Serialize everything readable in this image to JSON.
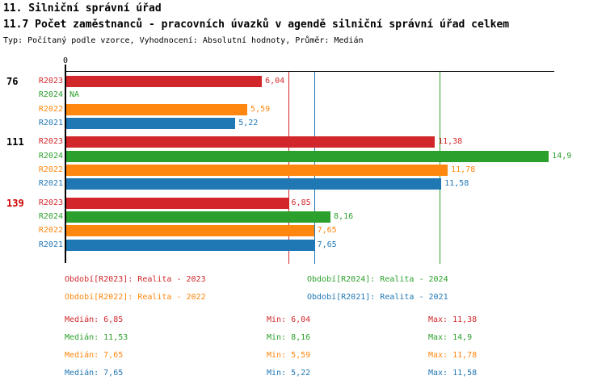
{
  "header": {
    "title": "11. Silniční správní úřad",
    "subtitle": "11.7 Počet zaměstnanců - pracovních úvazků v agendě silniční správní úřad celkem",
    "meta": "Typ: Počítaný podle vzorce, Vyhodnocení: Absolutní hodnoty, Průměr: Medián"
  },
  "colors": {
    "R2023": "#d2272a",
    "R2024": "#2ca02c",
    "R2022": "#ff870f",
    "R2021": "#1f77b4",
    "axis": "#000000"
  },
  "chart_data": {
    "type": "bar",
    "orientation": "horizontal",
    "title": "11.7 Počet zaměstnanců - pracovních úvazků v agendě silniční správní úřad celkem",
    "axis": {
      "origin_label": "0",
      "xlim": [
        0,
        15.07
      ],
      "grid": false
    },
    "series_order": [
      "R2023",
      "R2024",
      "R2022",
      "R2021"
    ],
    "groups": [
      {
        "label": "76",
        "label_color": "#000000",
        "bars": [
          {
            "series": "R2023",
            "value": 6.04,
            "display": "6,04"
          },
          {
            "series": "R2024",
            "value": null,
            "display": "NA"
          },
          {
            "series": "R2022",
            "value": 5.59,
            "display": "5,59"
          },
          {
            "series": "R2021",
            "value": 5.22,
            "display": "5,22"
          }
        ]
      },
      {
        "label": "111",
        "label_color": "#000000",
        "bars": [
          {
            "series": "R2023",
            "value": 11.38,
            "display": "11,38"
          },
          {
            "series": "R2024",
            "value": 14.9,
            "display": "14,9"
          },
          {
            "series": "R2022",
            "value": 11.78,
            "display": "11,78"
          },
          {
            "series": "R2021",
            "value": 11.58,
            "display": "11,58"
          }
        ]
      },
      {
        "label": "139",
        "label_color": "#cc0000",
        "bars": [
          {
            "series": "R2023",
            "value": 6.85,
            "display": "6,85"
          },
          {
            "series": "R2024",
            "value": 8.16,
            "display": "8,16"
          },
          {
            "series": "R2022",
            "value": 7.65,
            "display": "7,65"
          },
          {
            "series": "R2021",
            "value": 7.65,
            "display": "7,65"
          }
        ]
      }
    ],
    "median_lines": [
      {
        "series": "R2022",
        "value": 7.65
      },
      {
        "series": "R2021",
        "value": 7.65
      },
      {
        "series": "R2023",
        "value": 6.85
      },
      {
        "series": "R2024",
        "value": 11.53
      }
    ]
  },
  "legend": [
    {
      "series": "R2023",
      "label": "Období[R2023]: Realita - 2023"
    },
    {
      "series": "R2024",
      "label": "Období[R2024]: Realita - 2024"
    },
    {
      "series": "R2022",
      "label": "Období[R2022]: Realita - 2022"
    },
    {
      "series": "R2021",
      "label": "Období[R2021]: Realita - 2021"
    }
  ],
  "stats": [
    {
      "series": "R2023",
      "median": "Medián: 6,85",
      "min": "Min: 6,04",
      "max": "Max: 11,38"
    },
    {
      "series": "R2024",
      "median": "Medián: 11,53",
      "min": "Min: 8,16",
      "max": "Max: 14,9"
    },
    {
      "series": "R2022",
      "median": "Medián: 7,65",
      "min": "Min: 5,59",
      "max": "Max: 11,78"
    },
    {
      "series": "R2021",
      "median": "Medián: 7,65",
      "min": "Min: 5,22",
      "max": "Max: 11,58"
    }
  ]
}
